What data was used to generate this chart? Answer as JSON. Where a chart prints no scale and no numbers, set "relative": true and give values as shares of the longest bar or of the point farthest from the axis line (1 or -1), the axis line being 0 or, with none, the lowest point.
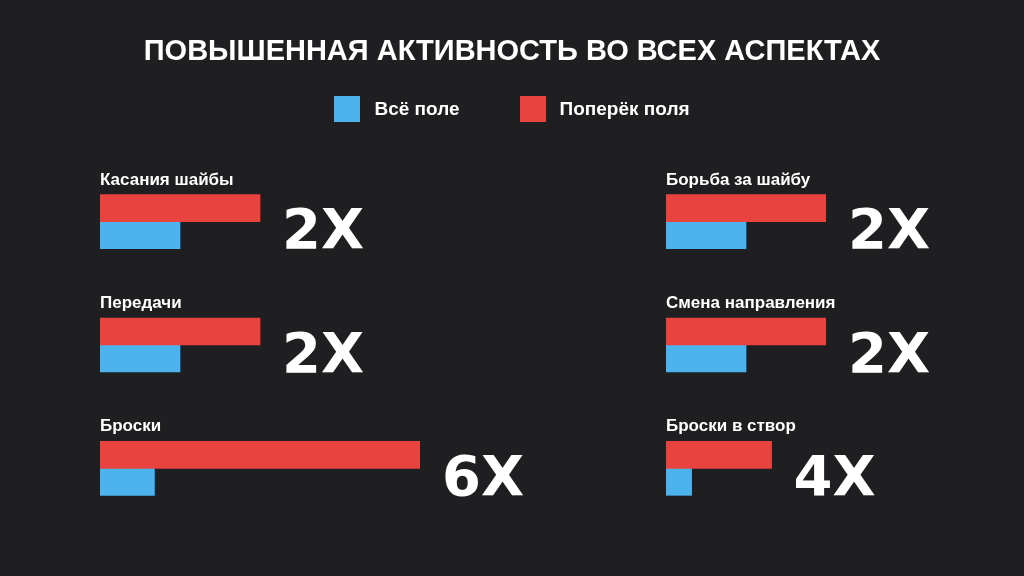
{
  "chart_data": [
    {
      "type": "bar",
      "orientation": "horizontal",
      "relative": true,
      "title": "ПОВЫШЕННАЯ АКТИВНОСТЬ ВО ВСЕХ АСПЕКТАХ",
      "legend": "top",
      "categories": [
        "Касания шайбы",
        "Передачи",
        "Броски"
      ],
      "series": [
        {
          "name": "Всё поле",
          "color": "#4db3ec",
          "values": [
            0.25,
            0.25,
            0.17
          ]
        },
        {
          "name": "Поперёк поля",
          "color": "#e8433f",
          "values": [
            0.5,
            0.5,
            1
          ]
        }
      ],
      "annotations": [
        "2X",
        "2X",
        "6X"
      ]
    },
    {
      "type": "bar",
      "orientation": "horizontal",
      "relative": true,
      "categories": [
        "Борьба за шайбу",
        "Смена направления",
        "Броски в створ"
      ],
      "series": [
        {
          "color": "#4db3ec",
          "values": [
            0.5,
            0.5,
            0.16
          ]
        },
        {
          "color": "#e8433f",
          "values": [
            1,
            1,
            0.66
          ]
        }
      ],
      "annotations": [
        "2X",
        "2X",
        "4X"
      ]
    }
  ]
}
